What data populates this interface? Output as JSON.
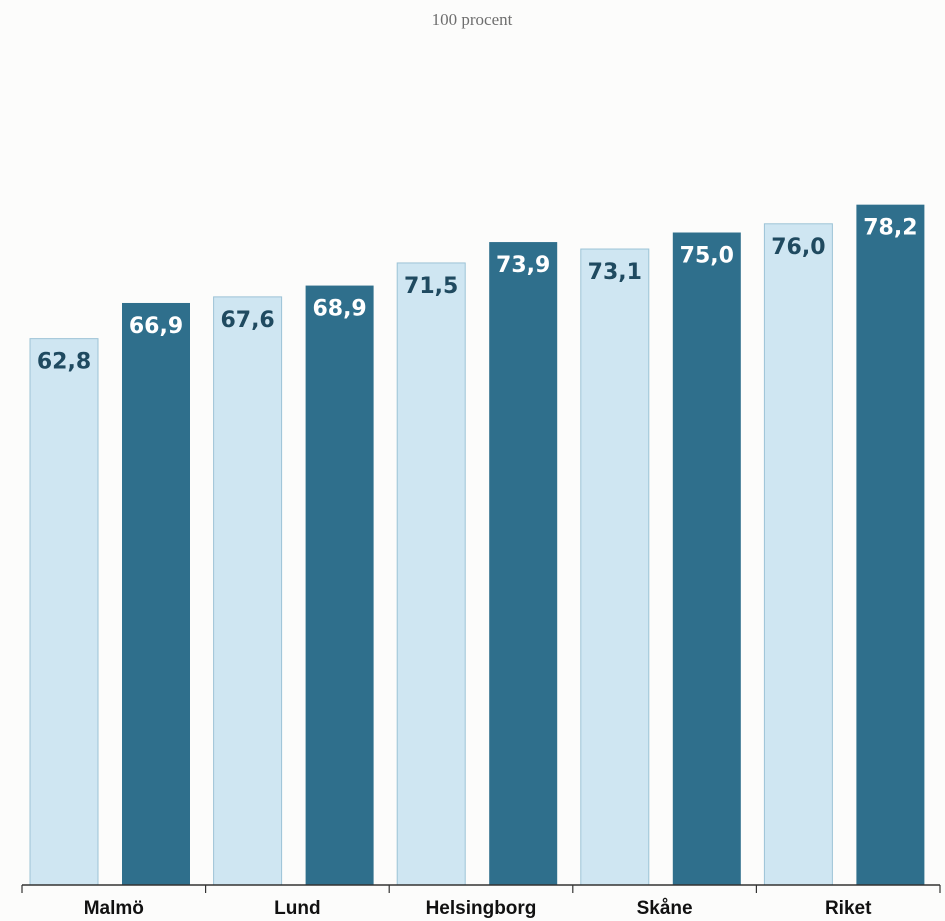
{
  "chart_data": {
    "type": "bar",
    "top_label": "100 procent",
    "categories": [
      "Malmö",
      "Lund",
      "Helsingborg",
      "Skåne",
      "Riket"
    ],
    "series": [
      {
        "values": [
          62.8,
          67.6,
          71.5,
          73.1,
          76.0
        ],
        "labels": [
          "62,8",
          "67,6",
          "71,5",
          "73,1",
          "76,0"
        ],
        "color": "#cfe6f2",
        "label_color": "#1f4a60"
      },
      {
        "values": [
          66.9,
          68.9,
          73.9,
          75.0,
          78.2
        ],
        "labels": [
          "66,9",
          "68,9",
          "73,9",
          "75,0",
          "78,2"
        ],
        "color": "#2f6f8c",
        "label_color": "#ffffff"
      }
    ],
    "ylim": [
      0,
      100
    ],
    "grid": false,
    "legend": "none"
  }
}
